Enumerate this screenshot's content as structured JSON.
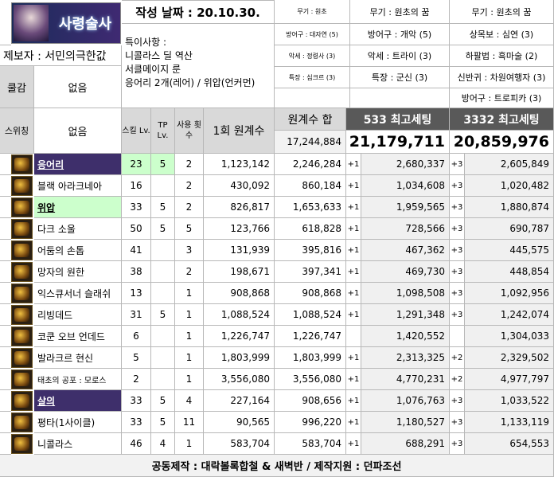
{
  "header": {
    "class_badge": "사령술사",
    "date_label": "작성 날짜 : 20.10.30.",
    "special_label": "특이사항 :",
    "special_lines": [
      "니콜라스 딜 역산",
      "서클메이지 룬",
      "응어리 2개(레어) / 위압(언커먼)"
    ],
    "reporter": "제보자 : 서민의극한값",
    "col1": [
      {
        "slot": "무기 : 원초"
      },
      {
        "slot": "방어구 : 대자연 (5)"
      },
      {
        "slot": "악세 : 정령사 (3)"
      },
      {
        "slot": "특장 : 심크르 (3)"
      }
    ],
    "col2": [
      {
        "slot": "무기 : 원초의 꿈"
      },
      {
        "slot": "방어구 : 개악 (5)"
      },
      {
        "slot": "악세 : 트라이 (3)"
      },
      {
        "slot": "특장 : 군신 (3)"
      }
    ],
    "col3": [
      {
        "slot": "무기 : 원초의 꿈"
      },
      {
        "slot": "상목보 : 심연 (3)"
      },
      {
        "slot": "하팔법 : 흑마술 (2)"
      },
      {
        "slot": "신반귀 : 차원여행자 (3)"
      },
      {
        "slot": "방어구 : 트로피카 (3)"
      }
    ],
    "curse_label": "쿨감",
    "curse_value": "없음",
    "swing_label": "스위칭",
    "swing_value": "없음"
  },
  "columns": {
    "skill_lv": "스킬 Lv.",
    "tp_lv": "TP Lv.",
    "uses": "사용 횟수",
    "once": "1회 원계수",
    "sum": "원계수 합",
    "sum_total": "17,244,884",
    "set533": "533 최고세팅",
    "set533_total": "21,179,711",
    "set3332": "3332 최고세팅",
    "set3332_total": "20,859,976"
  },
  "rows": [
    {
      "name": "응어리",
      "hl": "purple",
      "lv": "23",
      "tp": "5",
      "uses": "2",
      "once": "1,123,142",
      "sum": "2,246,284",
      "p1": "+1",
      "v1": "2,680,337",
      "p2": "+3",
      "v2": "2,605,849"
    },
    {
      "name": "블랙 아라크네아",
      "hl": "",
      "lv": "16",
      "tp": "",
      "uses": "2",
      "once": "430,092",
      "sum": "860,184",
      "p1": "+1",
      "v1": "1,034,608",
      "p2": "+3",
      "v2": "1,020,482"
    },
    {
      "name": "위압",
      "hl": "green",
      "lv": "33",
      "tp": "5",
      "uses": "2",
      "once": "826,817",
      "sum": "1,653,633",
      "p1": "+1",
      "v1": "1,959,565",
      "p2": "+3",
      "v2": "1,880,874"
    },
    {
      "name": "다크 소울",
      "hl": "",
      "lv": "50",
      "tp": "5",
      "uses": "5",
      "once": "123,766",
      "sum": "618,828",
      "p1": "+1",
      "v1": "728,566",
      "p2": "+3",
      "v2": "690,787"
    },
    {
      "name": "어둠의 손톱",
      "hl": "",
      "lv": "41",
      "tp": "",
      "uses": "3",
      "once": "131,939",
      "sum": "395,816",
      "p1": "+1",
      "v1": "467,362",
      "p2": "+3",
      "v2": "445,575"
    },
    {
      "name": "망자의 원한",
      "hl": "",
      "lv": "38",
      "tp": "",
      "uses": "2",
      "once": "198,671",
      "sum": "397,341",
      "p1": "+1",
      "v1": "469,730",
      "p2": "+3",
      "v2": "448,854"
    },
    {
      "name": "익스큐서너 슬래쉬",
      "hl": "",
      "lv": "13",
      "tp": "",
      "uses": "1",
      "once": "908,868",
      "sum": "908,868",
      "p1": "+1",
      "v1": "1,098,508",
      "p2": "+3",
      "v2": "1,092,956"
    },
    {
      "name": "리빙데드",
      "hl": "",
      "lv": "31",
      "tp": "5",
      "uses": "1",
      "once": "1,088,524",
      "sum": "1,088,524",
      "p1": "+1",
      "v1": "1,291,348",
      "p2": "+3",
      "v2": "1,242,074"
    },
    {
      "name": "코쿤 오브 언데드",
      "hl": "",
      "lv": "6",
      "tp": "",
      "uses": "1",
      "once": "1,226,747",
      "sum": "1,226,747",
      "p1": "",
      "v1": "1,420,552",
      "p2": "",
      "v2": "1,304,033"
    },
    {
      "name": "발라크르 현신",
      "hl": "",
      "lv": "5",
      "tp": "",
      "uses": "1",
      "once": "1,803,999",
      "sum": "1,803,999",
      "p1": "+1",
      "v1": "2,313,325",
      "p2": "+2",
      "v2": "2,329,502"
    },
    {
      "name": "태초의 공포 : 모로스",
      "hl": "",
      "lv": "2",
      "tp": "",
      "uses": "1",
      "once": "3,556,080",
      "sum": "3,556,080",
      "p1": "+1",
      "v1": "4,770,231",
      "p2": "+2",
      "v2": "4,977,797"
    },
    {
      "name": "살의",
      "hl": "purple",
      "lv": "33",
      "tp": "5",
      "uses": "4",
      "once": "227,164",
      "sum": "908,656",
      "p1": "+1",
      "v1": "1,076,763",
      "p2": "+3",
      "v2": "1,033,522"
    },
    {
      "name": "평타(1사이클)",
      "hl": "",
      "lv": "33",
      "tp": "5",
      "uses": "11",
      "once": "90,565",
      "sum": "996,220",
      "p1": "+1",
      "v1": "1,180,527",
      "p2": "+3",
      "v2": "1,133,119"
    },
    {
      "name": "니콜라스",
      "hl": "",
      "lv": "46",
      "tp": "4",
      "uses": "1",
      "once": "583,704",
      "sum": "583,704",
      "p1": "+1",
      "v1": "688,291",
      "p2": "+3",
      "v2": "654,553"
    }
  ],
  "footer": "공동제작 : 대락볼록합철 & 새벽반 / 제작지원 : 던파조선"
}
